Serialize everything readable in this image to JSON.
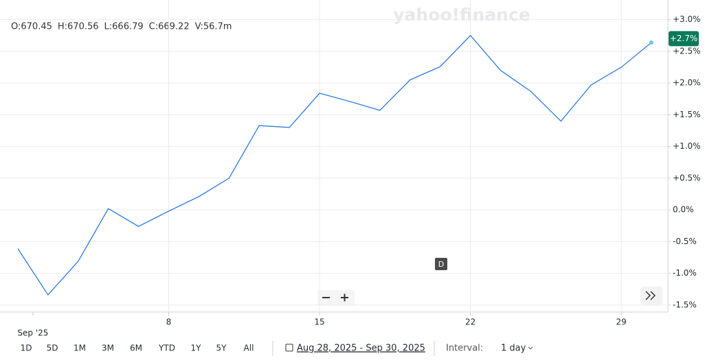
{
  "ohlc": [
    "O:670.45",
    "H:670.56",
    "L:666.79",
    "C:669.22",
    "V:56.7m"
  ],
  "watermark": "yahoo!finance",
  "chart_data": {
    "type": "line",
    "x": [
      0,
      1,
      2,
      3,
      4,
      5,
      6,
      7,
      8,
      9,
      10,
      11,
      12,
      13,
      14,
      15,
      16,
      17,
      18,
      19,
      20,
      21
    ],
    "series": [
      {
        "color": "#1a6fe0",
        "values": [
          -0.61,
          -1.34,
          -0.81,
          0.02,
          -0.26,
          -0.02,
          0.21,
          0.5,
          1.33,
          1.3,
          1.84,
          1.71,
          1.57,
          2.05,
          2.26,
          2.75,
          2.2,
          1.87,
          1.4,
          1.97,
          2.25,
          2.64
        ]
      }
    ],
    "xlim": [
      -0.5,
      21.5
    ],
    "xticks": [
      {
        "value": 0.5,
        "label": "Sep '25"
      },
      {
        "value": 5,
        "label": "8"
      },
      {
        "value": 10,
        "label": "15"
      },
      {
        "value": 15,
        "label": "22"
      },
      {
        "value": 20,
        "label": "29"
      }
    ],
    "ylim": [
      -1.61,
      3.31
    ],
    "yticks": [
      {
        "value": 3.0,
        "label": "+3.0%"
      },
      {
        "value": 2.5,
        "label": "+2.5%"
      },
      {
        "value": 2.0,
        "label": "+2.0%"
      },
      {
        "value": 1.5,
        "label": "+1.5%"
      },
      {
        "value": 1.0,
        "label": "+1.0%"
      },
      {
        "value": 0.5,
        "label": "+0.5%"
      },
      {
        "value": 0.0,
        "label": "0.0%"
      },
      {
        "value": -0.5,
        "label": "-0.5%"
      },
      {
        "value": -1.0,
        "label": "-1.0%"
      },
      {
        "value": -1.5,
        "label": "-1.5%"
      }
    ],
    "grid": true,
    "last_label": {
      "value": 2.7,
      "label": "+2.7%"
    }
  },
  "event_marker": "D",
  "ranges": [
    "1D",
    "5D",
    "1M",
    "3M",
    "6M",
    "YTD",
    "1Y",
    "5Y",
    "All"
  ],
  "date_range": "Aug 28, 2025 - Sep 30, 2025",
  "interval_label": "Interval:",
  "interval": "1 day"
}
